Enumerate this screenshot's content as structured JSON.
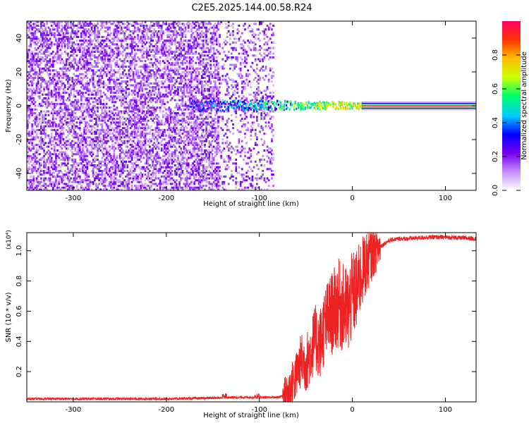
{
  "title": "C2E5.2025.144.00.58.R24",
  "colors": {
    "snr_line": "#ee2222",
    "axis": "#000000",
    "background": "#ffffff"
  },
  "chart_data": [
    {
      "type": "heatmap",
      "title": "C2E5.2025.144.00.58.R24",
      "xlabel": "Height of straight line (km)",
      "ylabel": "Frequency (Hz)",
      "xlim": [
        -350,
        133
      ],
      "ylim": [
        -50,
        50
      ],
      "x_ticks": [
        -300,
        -200,
        -100,
        0,
        100
      ],
      "y_ticks": [
        -40,
        -20,
        0,
        20,
        40
      ],
      "grid": false,
      "colorbar": {
        "label": "Normalized spectral amplitude",
        "range": [
          0,
          1
        ],
        "ticks": [
          0.0,
          0.2,
          0.4,
          0.6,
          0.8
        ],
        "colormap": [
          "#ffffff",
          "#cc99ff",
          "#7700ee",
          "#0000ff",
          "#00ccff",
          "#00ff66",
          "#ccff00",
          "#ffbb00",
          "#ff3300",
          "#ff0066"
        ]
      },
      "features": [
        {
          "name": "noise",
          "x_range": [
            -350,
            -85
          ],
          "freq_range": [
            -50,
            50
          ],
          "amplitude": 0.1
        },
        {
          "name": "signal",
          "x_range": [
            -175,
            133
          ],
          "freq": 0,
          "amplitude_at_start": 0.25,
          "amplitude_at_end": 1.0
        }
      ]
    },
    {
      "type": "line",
      "xlabel": "Height of straight line (km)",
      "ylabel": "SNR (10 * v/v)",
      "y_multiplier": "(x10⁴)",
      "xlim": [
        -350,
        133
      ],
      "ylim": [
        0,
        1.12
      ],
      "x_ticks": [
        -300,
        -200,
        -100,
        0,
        100
      ],
      "y_ticks": [
        0.2,
        0.4,
        0.6,
        0.8,
        1.0
      ],
      "grid": false,
      "series": [
        {
          "x": [
            -350,
            -300,
            -250,
            -200,
            -150,
            -130,
            -100,
            -80,
            -70,
            -60,
            -55,
            -50,
            -45,
            -40,
            -35,
            -30,
            -25,
            -20,
            -15,
            -10,
            -5,
            0,
            5,
            10,
            15,
            20,
            25,
            30,
            35,
            40,
            50,
            60,
            80,
            100,
            133
          ],
          "values": [
            0.02,
            0.02,
            0.02,
            0.02,
            0.025,
            0.03,
            0.03,
            0.03,
            0.05,
            0.18,
            0.28,
            0.25,
            0.33,
            0.42,
            0.38,
            0.5,
            0.56,
            0.6,
            0.65,
            0.62,
            0.6,
            0.7,
            0.75,
            0.85,
            0.92,
            0.97,
            1.0,
            1.03,
            1.05,
            1.07,
            1.08,
            1.08,
            1.09,
            1.09,
            1.08
          ]
        }
      ]
    }
  ]
}
